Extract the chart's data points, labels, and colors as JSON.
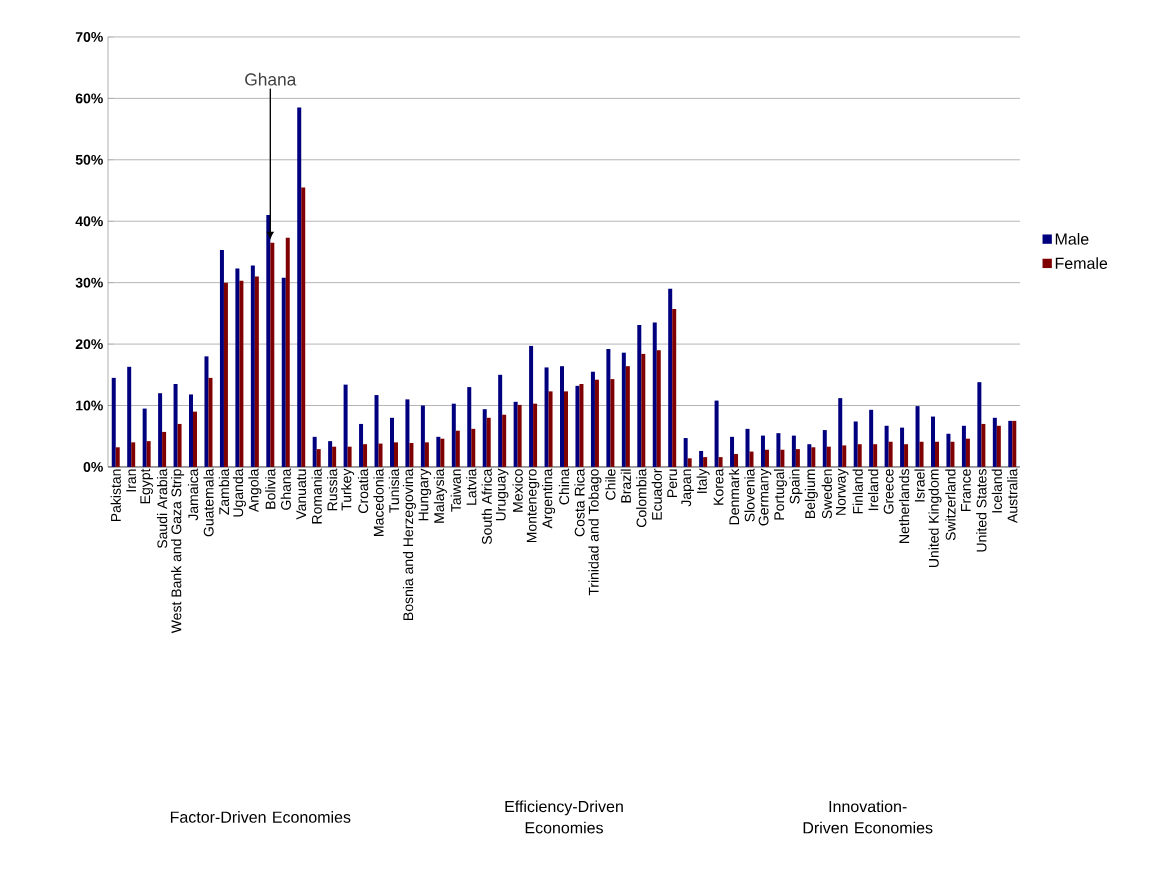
{
  "chart_data": {
    "type": "bar",
    "categories": [
      "Pakistan",
      "Iran",
      "Egypt",
      "Saudi Arabia",
      "West Bank and Gaza Strip",
      "Jamaica",
      "Guatemala",
      "Zambia",
      "Uganda",
      "Angola",
      "Bolivia",
      "Ghana",
      "Vanuatu",
      "Romania",
      "Russia",
      "Turkey",
      "Croatia",
      "Macedonia",
      "Tunisia",
      "Bosnia and Herzegovina",
      "Hungary",
      "Malaysia",
      "Taiwan",
      "Latvia",
      "South Africa",
      "Uruguay",
      "Mexico",
      "Montenegro",
      "Argentina",
      "China",
      "Costa Rica",
      "Trinidad and Tobago",
      "Chile",
      "Brazil",
      "Colombia",
      "Ecuador",
      "Peru",
      "Japan",
      "Italy",
      "Korea",
      "Denmark",
      "Slovenia",
      "Germany",
      "Portugal",
      "Spain",
      "Belgium",
      "Sweden",
      "Norway",
      "Finland",
      "Ireland",
      "Greece",
      "Netherlands",
      "Israel",
      "United Kingdom",
      "Switzerland",
      "France",
      "United States",
      "Iceland",
      "Australia"
    ],
    "series": [
      {
        "name": "Male",
        "color": "#00007f",
        "values": [
          14.5,
          16.3,
          9.5,
          12,
          13.5,
          11.8,
          18,
          35.3,
          32.3,
          32.8,
          41,
          30.8,
          58.5,
          4.9,
          4.2,
          13.4,
          7,
          11.7,
          8,
          11,
          10,
          4.9,
          10.3,
          13,
          9.4,
          15,
          10.6,
          19.7,
          16.2,
          16.4,
          13.2,
          15.5,
          19.2,
          18.6,
          23.1,
          23.5,
          29,
          4.7,
          2.6,
          10.8,
          4.9,
          6.2,
          5.1,
          5.5,
          5.1,
          3.7,
          6,
          11.2,
          7.4,
          9.3,
          6.7,
          6.4,
          9.9,
          8.2,
          5.4,
          6.7,
          13.8,
          8,
          7.5
        ]
      },
      {
        "name": "Female",
        "color": "#7f0000",
        "values": [
          3.2,
          4,
          4.2,
          5.7,
          7,
          9,
          14.5,
          30,
          30.3,
          31,
          36.5,
          37.3,
          45.5,
          2.9,
          3.3,
          3.3,
          3.7,
          3.8,
          4,
          3.9,
          4,
          4.6,
          5.9,
          6.2,
          8,
          8.5,
          10.1,
          10.3,
          12.3,
          12.3,
          13.5,
          14.2,
          14.3,
          16.4,
          18.4,
          19,
          25.7,
          1.4,
          1.6,
          1.6,
          2.1,
          2.5,
          2.8,
          2.8,
          2.9,
          3.2,
          3.3,
          3.5,
          3.7,
          3.7,
          4.1,
          3.7,
          4.1,
          4.1,
          4.1,
          4.6,
          7,
          6.7,
          7.5
        ]
      }
    ],
    "ylim": [
      0,
      70
    ],
    "yticks": [
      {
        "value": 0,
        "label": "0%"
      },
      {
        "value": 10,
        "label": "10%"
      },
      {
        "value": 20,
        "label": "20%"
      },
      {
        "value": 30,
        "label": "30%"
      },
      {
        "value": 40,
        "label": "40%"
      },
      {
        "value": 50,
        "label": "50%"
      },
      {
        "value": 60,
        "label": "60%"
      },
      {
        "value": 70,
        "label": "70%"
      }
    ],
    "grid": "y",
    "legend": "right",
    "annotations": [
      {
        "text": "Ghana",
        "x": "Bolivia",
        "y": 37
      },
      "Factor-Driven Economies",
      "Efficiency-Driven Economies",
      "Innovation-Driven Economies"
    ]
  }
}
